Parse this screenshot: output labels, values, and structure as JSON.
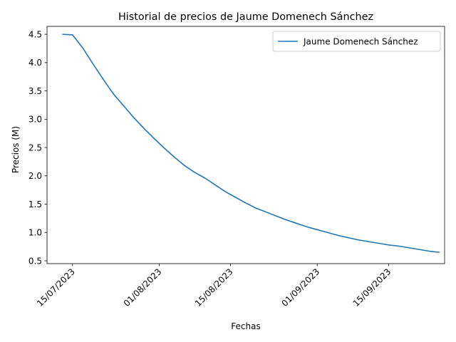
{
  "chart_data": {
    "type": "line",
    "title": "Historial de precios de Jaume Domenech Sánchez",
    "xlabel": "Fechas",
    "ylabel": "Precios (M)",
    "x_tick_labels": [
      "15/07/2023",
      "01/08/2023",
      "15/08/2023",
      "01/09/2023",
      "15/09/2023"
    ],
    "x_tick_dates": [
      "2023-07-15",
      "2023-08-01",
      "2023-08-15",
      "2023-09-01",
      "2023-09-15"
    ],
    "xlim": [
      "2023-07-10",
      "2023-09-26"
    ],
    "ylim": [
      0.45,
      4.64
    ],
    "y_ticks": [
      "0.5",
      "1.0",
      "1.5",
      "2.0",
      "2.5",
      "3.0",
      "3.5",
      "4.0",
      "4.5"
    ],
    "grid": false,
    "legend_position": "top-right",
    "series": [
      {
        "name": "Jaume Domenech Sánchez",
        "color": "#1f77b4",
        "x": [
          "2023-07-13",
          "2023-07-15",
          "2023-07-17",
          "2023-07-19",
          "2023-07-21",
          "2023-07-23",
          "2023-07-25",
          "2023-07-27",
          "2023-07-29",
          "2023-07-31",
          "2023-08-02",
          "2023-08-04",
          "2023-08-06",
          "2023-08-08",
          "2023-08-10",
          "2023-08-12",
          "2023-08-14",
          "2023-08-16",
          "2023-08-18",
          "2023-08-20",
          "2023-08-22",
          "2023-08-24",
          "2023-08-26",
          "2023-08-28",
          "2023-08-30",
          "2023-09-01",
          "2023-09-03",
          "2023-09-05",
          "2023-09-07",
          "2023-09-09",
          "2023-09-11",
          "2023-09-13",
          "2023-09-15",
          "2023-09-17",
          "2023-09-19",
          "2023-09-21",
          "2023-09-23",
          "2023-09-25"
        ],
        "values": [
          4.5,
          4.49,
          4.26,
          3.98,
          3.71,
          3.45,
          3.24,
          3.03,
          2.84,
          2.66,
          2.49,
          2.33,
          2.18,
          2.06,
          1.96,
          1.84,
          1.72,
          1.62,
          1.52,
          1.43,
          1.36,
          1.29,
          1.22,
          1.16,
          1.1,
          1.05,
          1.0,
          0.95,
          0.91,
          0.87,
          0.84,
          0.81,
          0.78,
          0.76,
          0.73,
          0.7,
          0.67,
          0.65
        ]
      }
    ]
  }
}
